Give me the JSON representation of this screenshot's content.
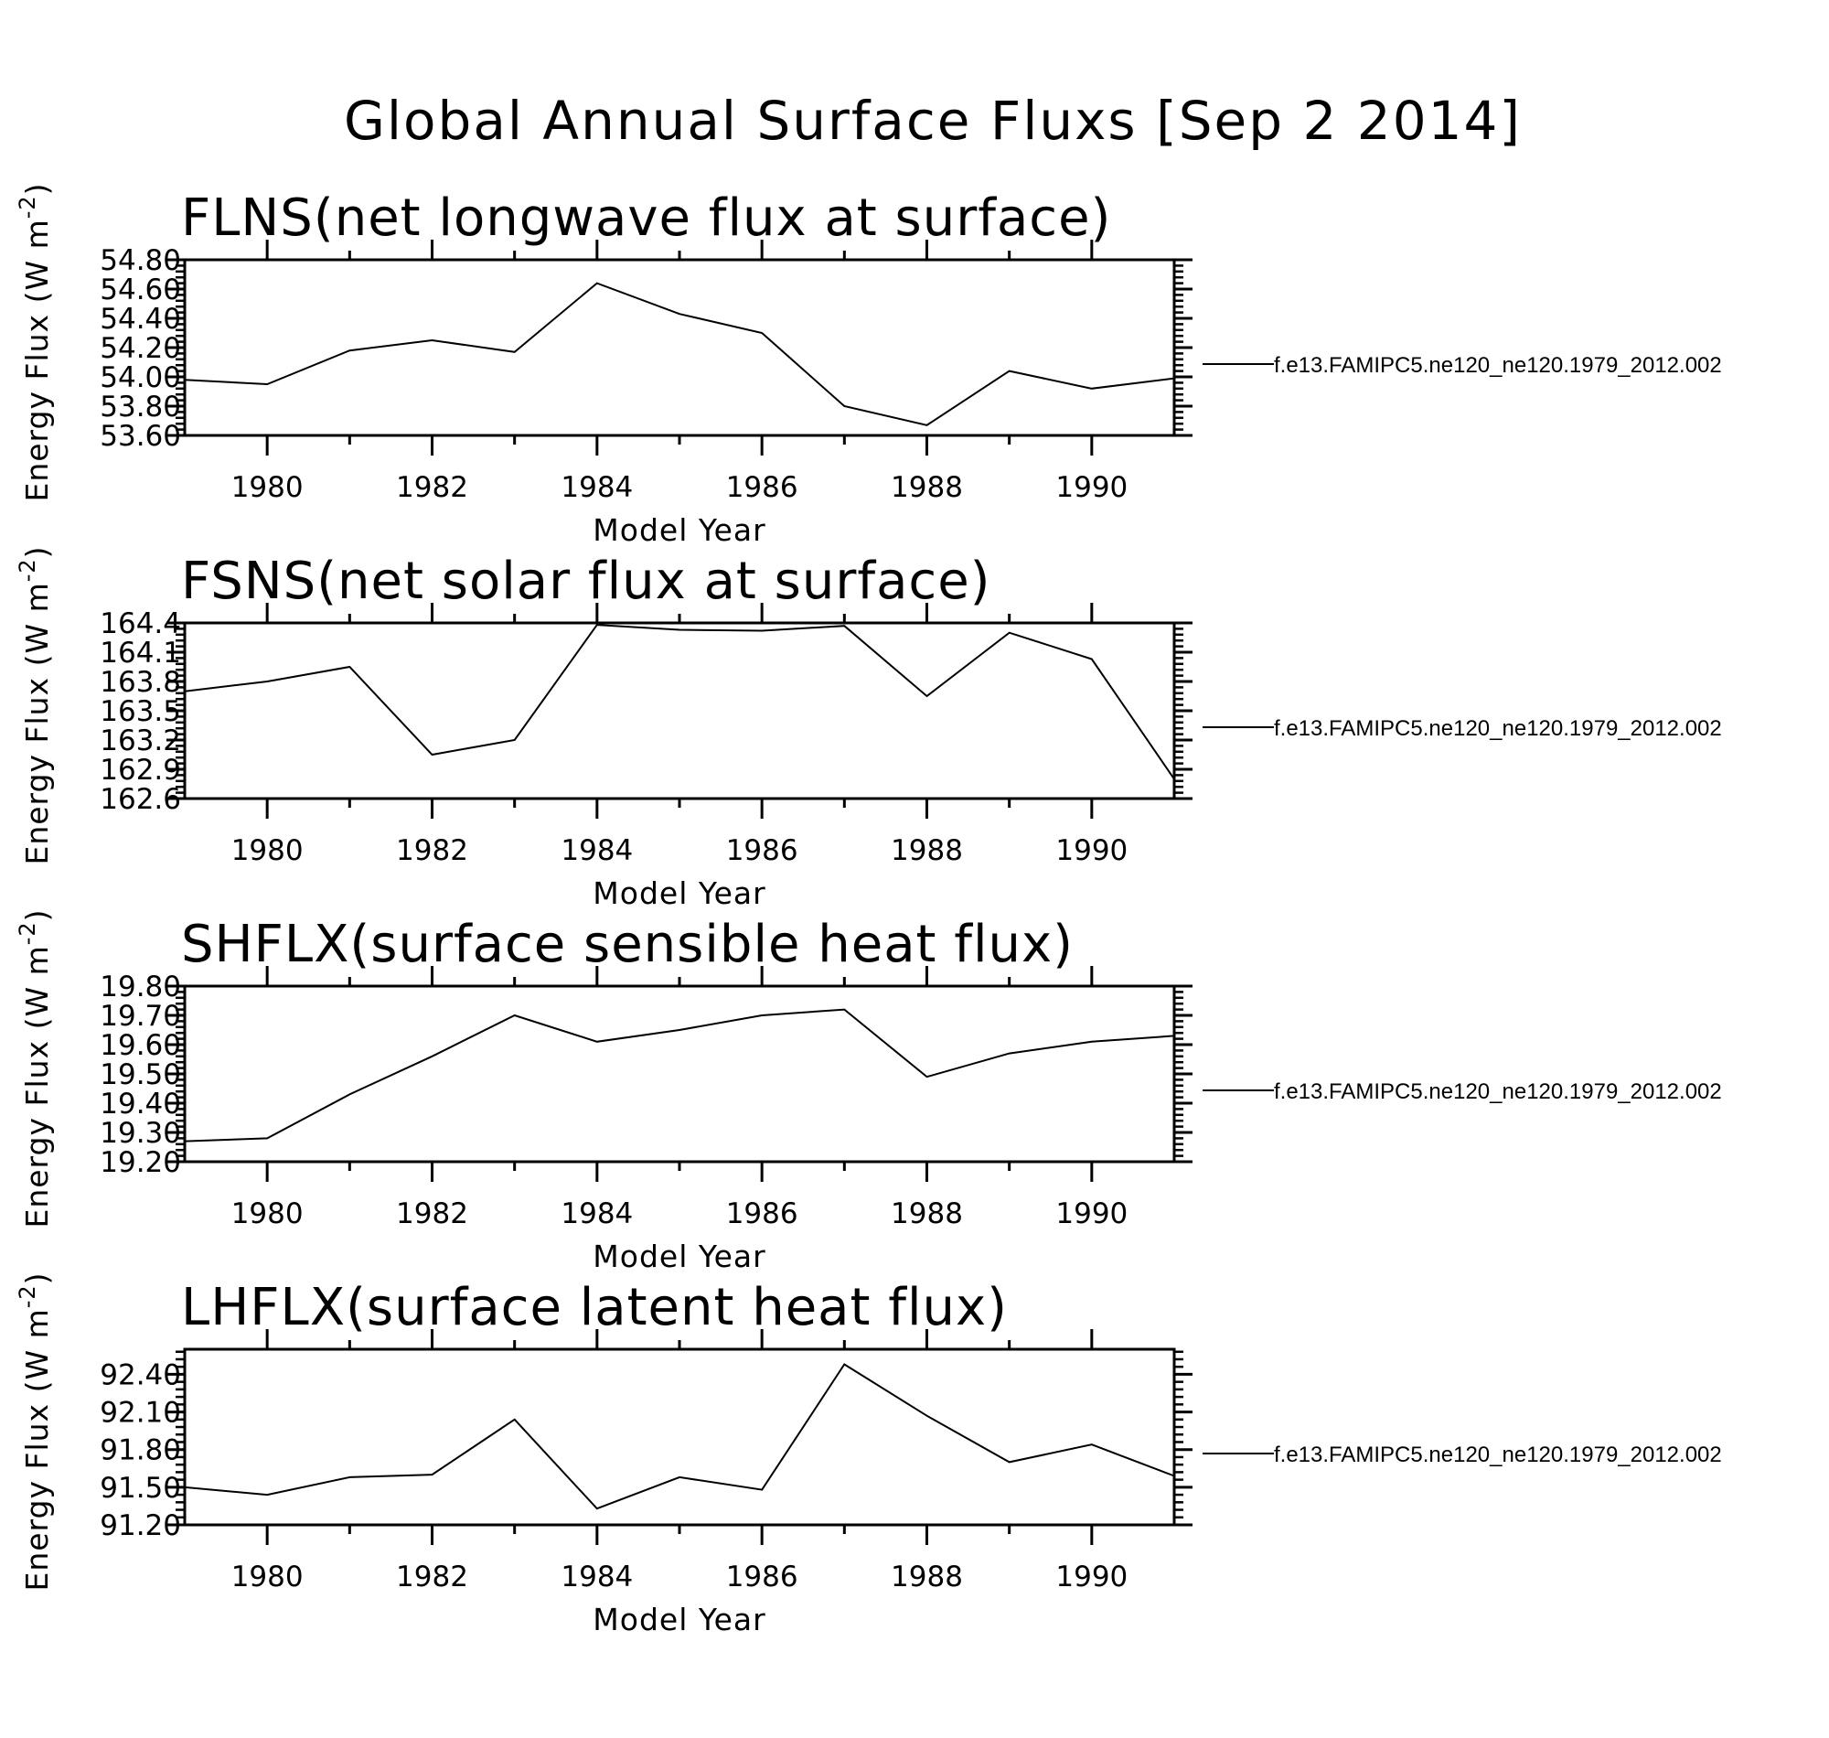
{
  "title": "Global Annual Surface Fluxs [Sep  2 2014]",
  "chart_data": [
    {
      "type": "line",
      "title": "FLNS(net longwave flux at surface)",
      "xlabel": "Model Year",
      "ylabel": "Energy Flux (W m",
      "ylabel_sup": "-2",
      "ylabel_close": ")",
      "xlim": [
        1979,
        1991
      ],
      "ylim": [
        53.6,
        54.8
      ],
      "xticks": [
        1980,
        1982,
        1984,
        1986,
        1988,
        1990
      ],
      "yticks": [
        "53.60",
        "53.80",
        "54.00",
        "54.20",
        "54.40",
        "54.60",
        "54.80"
      ],
      "yticks_values": [
        53.6,
        53.8,
        54.0,
        54.2,
        54.4,
        54.6,
        54.8
      ],
      "x": [
        1979,
        1980,
        1981,
        1982,
        1983,
        1984,
        1985,
        1986,
        1987,
        1988,
        1989,
        1990,
        1991
      ],
      "series": [
        {
          "name": "f.e13.FAMIPC5.ne120_ne120.1979_2012.002",
          "values": [
            53.98,
            53.95,
            54.18,
            54.25,
            54.17,
            54.64,
            54.43,
            54.3,
            53.8,
            53.67,
            54.04,
            53.92,
            53.99
          ]
        }
      ],
      "legend_position": "right",
      "grid": false
    },
    {
      "type": "line",
      "title": "FSNS(net solar flux at surface)",
      "xlabel": "Model Year",
      "ylabel": "Energy Flux (W m",
      "ylabel_sup": "-2",
      "ylabel_close": ")",
      "xlim": [
        1979,
        1991
      ],
      "ylim": [
        162.6,
        164.4
      ],
      "xticks": [
        1980,
        1982,
        1984,
        1986,
        1988,
        1990
      ],
      "yticks": [
        "162.6",
        "162.9",
        "163.2",
        "163.5",
        "163.8",
        "164.1",
        "164.4"
      ],
      "yticks_values": [
        162.6,
        162.9,
        163.2,
        163.5,
        163.8,
        164.1,
        164.4
      ],
      "x": [
        1979,
        1980,
        1981,
        1982,
        1983,
        1984,
        1985,
        1986,
        1987,
        1988,
        1989,
        1990,
        1991
      ],
      "series": [
        {
          "name": "f.e13.FAMIPC5.ne120_ne120.1979_2012.002",
          "values": [
            163.7,
            163.8,
            163.95,
            163.05,
            163.2,
            164.38,
            164.33,
            164.32,
            164.37,
            163.65,
            164.3,
            164.03,
            162.8
          ]
        }
      ],
      "legend_position": "right",
      "grid": false
    },
    {
      "type": "line",
      "title": "SHFLX(surface sensible heat flux)",
      "xlabel": "Model Year",
      "ylabel": "Energy Flux (W m",
      "ylabel_sup": "-2",
      "ylabel_close": ")",
      "xlim": [
        1979,
        1991
      ],
      "ylim": [
        19.2,
        19.8
      ],
      "xticks": [
        1980,
        1982,
        1984,
        1986,
        1988,
        1990
      ],
      "yticks": [
        "19.20",
        "19.30",
        "19.40",
        "19.50",
        "19.60",
        "19.70",
        "19.80"
      ],
      "yticks_values": [
        19.2,
        19.3,
        19.4,
        19.5,
        19.6,
        19.7,
        19.8
      ],
      "x": [
        1979,
        1980,
        1981,
        1982,
        1983,
        1984,
        1985,
        1986,
        1987,
        1988,
        1989,
        1990,
        1991
      ],
      "series": [
        {
          "name": "f.e13.FAMIPC5.ne120_ne120.1979_2012.002",
          "values": [
            19.27,
            19.28,
            19.43,
            19.56,
            19.7,
            19.61,
            19.65,
            19.7,
            19.72,
            19.49,
            19.57,
            19.61,
            19.63
          ]
        }
      ],
      "legend_position": "right",
      "grid": false
    },
    {
      "type": "line",
      "title": "LHFLX(surface latent heat flux)",
      "xlabel": "Model Year",
      "ylabel": "Energy Flux (W m",
      "ylabel_sup": "-2",
      "ylabel_close": ")",
      "xlim": [
        1979,
        1991
      ],
      "ylim": [
        91.2,
        92.6
      ],
      "xticks": [
        1980,
        1982,
        1984,
        1986,
        1988,
        1990
      ],
      "yticks": [
        "91.20",
        "91.50",
        "91.80",
        "92.10",
        "92.40"
      ],
      "yticks_values": [
        91.2,
        91.5,
        91.8,
        92.1,
        92.4
      ],
      "x": [
        1979,
        1980,
        1981,
        1982,
        1983,
        1984,
        1985,
        1986,
        1987,
        1988,
        1989,
        1990,
        1991
      ],
      "series": [
        {
          "name": "f.e13.FAMIPC5.ne120_ne120.1979_2012.002",
          "values": [
            91.5,
            91.44,
            91.58,
            91.6,
            92.04,
            91.33,
            91.58,
            91.48,
            92.48,
            92.07,
            91.7,
            91.84,
            91.59
          ]
        }
      ],
      "legend_position": "right",
      "grid": false
    }
  ]
}
